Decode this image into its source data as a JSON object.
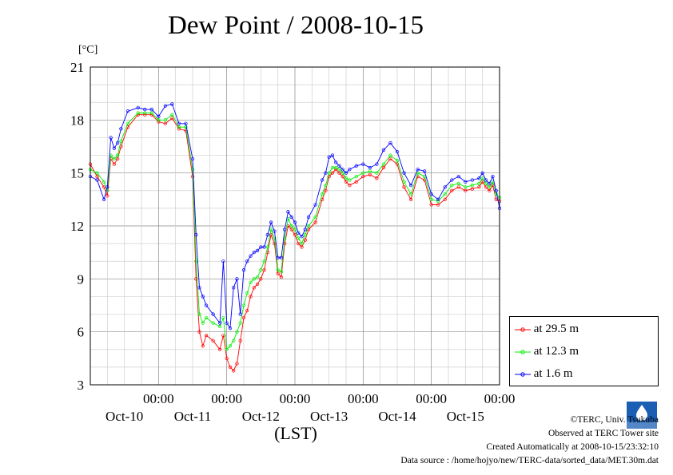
{
  "title": "Dew Point / 2008-10-15",
  "unit": "[°C]",
  "xlabel": "(LST)",
  "footer": {
    "copyright": "©TERC, Univ. Tsukuba",
    "observed": "Observed at TERC Tower site",
    "created": "Created Automatically at 2008-10-15/23:32:10",
    "source": "Data source : /home/hojyo/new/TERC-data/sorted_data/MET.30m.dat"
  },
  "logo_text": "TERC",
  "colors": {
    "series_29_5": "#ff0000",
    "series_12_3": "#00ee00",
    "series_1_6": "#0000ff",
    "grid": "#999999"
  },
  "chart_data": {
    "type": "line",
    "x_unit": "days from 2008-10-09 12:00 LST",
    "xlim": [
      0,
      6
    ],
    "ylim": [
      3,
      21
    ],
    "yticks": [
      3,
      6,
      9,
      12,
      15,
      18,
      21
    ],
    "xtick_labels": [
      {
        "x": 1,
        "time": "00:00",
        "date": "Oct-10"
      },
      {
        "x": 2,
        "time": "00:00",
        "date": "Oct-11"
      },
      {
        "x": 3,
        "time": "00:00",
        "date": "Oct-12"
      },
      {
        "x": 4,
        "time": "00:00",
        "date": "Oct-13"
      },
      {
        "x": 5,
        "time": "00:00",
        "date": "Oct-14"
      },
      {
        "x": 6,
        "time": "00:00",
        "date": "Oct-15"
      }
    ],
    "grid": true,
    "legend_position": "right",
    "series": [
      {
        "name": "at 29.5 m",
        "color": "#ff0000",
        "x": [
          0,
          0.1,
          0.2,
          0.25,
          0.3,
          0.35,
          0.4,
          0.45,
          0.55,
          0.7,
          0.8,
          0.9,
          1.0,
          1.1,
          1.2,
          1.3,
          1.4,
          1.5,
          1.55,
          1.6,
          1.65,
          1.7,
          1.8,
          1.9,
          1.95,
          2.0,
          2.05,
          2.1,
          2.15,
          2.2,
          2.25,
          2.3,
          2.35,
          2.4,
          2.45,
          2.5,
          2.55,
          2.6,
          2.65,
          2.7,
          2.75,
          2.8,
          2.85,
          2.9,
          2.95,
          3.0,
          3.05,
          3.1,
          3.15,
          3.2,
          3.3,
          3.4,
          3.45,
          3.5,
          3.55,
          3.6,
          3.65,
          3.7,
          3.75,
          3.8,
          3.9,
          4.0,
          4.1,
          4.2,
          4.3,
          4.4,
          4.5,
          4.6,
          4.7,
          4.8,
          4.9,
          5.0,
          5.1,
          5.2,
          5.3,
          5.4,
          5.5,
          5.6,
          5.7,
          5.75,
          5.8,
          5.85,
          5.9,
          5.95,
          6.0
        ],
        "y": [
          15.5,
          14.8,
          14.2,
          13.7,
          15.8,
          15.5,
          15.8,
          16.5,
          17.6,
          18.3,
          18.3,
          18.3,
          17.9,
          17.8,
          18.1,
          17.5,
          17.4,
          14.8,
          9.0,
          6.0,
          5.2,
          5.8,
          5.5,
          5.0,
          5.8,
          4.5,
          4.0,
          3.8,
          4.2,
          5.5,
          6.8,
          7.2,
          8.0,
          8.5,
          8.7,
          9.0,
          9.5,
          10.5,
          11.5,
          11.0,
          9.3,
          9.1,
          11.0,
          12.0,
          11.8,
          11.5,
          11.0,
          10.8,
          11.2,
          11.8,
          12.2,
          13.5,
          14.0,
          14.8,
          15.0,
          15.2,
          15.0,
          14.8,
          14.5,
          14.3,
          14.5,
          14.8,
          14.9,
          14.7,
          15.3,
          15.8,
          15.5,
          14.2,
          13.5,
          14.8,
          14.6,
          13.2,
          13.2,
          13.5,
          14.0,
          14.2,
          14.0,
          14.1,
          14.2,
          14.5,
          14.2,
          14.0,
          14.3,
          13.5,
          13.4
        ]
      },
      {
        "name": "at 12.3 m",
        "color": "#00ee00",
        "x": [
          0,
          0.1,
          0.2,
          0.25,
          0.3,
          0.35,
          0.4,
          0.45,
          0.55,
          0.7,
          0.8,
          0.9,
          1.0,
          1.1,
          1.2,
          1.3,
          1.4,
          1.5,
          1.55,
          1.6,
          1.65,
          1.7,
          1.8,
          1.9,
          1.95,
          2.0,
          2.05,
          2.1,
          2.15,
          2.2,
          2.25,
          2.3,
          2.35,
          2.4,
          2.45,
          2.5,
          2.55,
          2.6,
          2.65,
          2.7,
          2.75,
          2.8,
          2.85,
          2.9,
          2.95,
          3.0,
          3.05,
          3.1,
          3.15,
          3.2,
          3.3,
          3.4,
          3.45,
          3.5,
          3.55,
          3.6,
          3.65,
          3.7,
          3.75,
          3.8,
          3.9,
          4.0,
          4.1,
          4.2,
          4.3,
          4.4,
          4.5,
          4.6,
          4.7,
          4.8,
          4.9,
          5.0,
          5.1,
          5.2,
          5.3,
          5.4,
          5.5,
          5.6,
          5.7,
          5.75,
          5.8,
          5.85,
          5.9,
          5.95,
          6.0
        ],
        "y": [
          15.2,
          15.0,
          14.5,
          14.0,
          16.0,
          15.8,
          16.0,
          16.8,
          17.8,
          18.4,
          18.4,
          18.4,
          18.0,
          18.0,
          18.3,
          17.6,
          17.6,
          15.2,
          10.0,
          7.0,
          6.5,
          6.8,
          6.5,
          6.3,
          6.8,
          5.0,
          5.2,
          5.5,
          6.0,
          6.5,
          7.5,
          8.2,
          8.8,
          9.0,
          9.1,
          9.5,
          10.0,
          10.8,
          11.8,
          11.3,
          9.5,
          9.4,
          11.3,
          12.4,
          12.0,
          11.8,
          11.3,
          11.0,
          11.5,
          12.0,
          12.5,
          13.8,
          14.3,
          15.0,
          15.3,
          15.3,
          15.2,
          15.0,
          14.7,
          14.6,
          14.8,
          15.0,
          15.1,
          15.0,
          15.5,
          16.0,
          15.7,
          14.5,
          13.8,
          15.0,
          14.8,
          13.5,
          13.4,
          13.8,
          14.3,
          14.4,
          14.2,
          14.3,
          14.4,
          14.7,
          14.4,
          14.2,
          14.5,
          13.8,
          13.6
        ]
      },
      {
        "name": "at 1.6 m",
        "color": "#0000ff",
        "x": [
          0,
          0.1,
          0.2,
          0.25,
          0.3,
          0.35,
          0.4,
          0.45,
          0.55,
          0.7,
          0.8,
          0.9,
          1.0,
          1.1,
          1.2,
          1.3,
          1.4,
          1.5,
          1.55,
          1.6,
          1.65,
          1.7,
          1.8,
          1.9,
          1.95,
          2.0,
          2.05,
          2.1,
          2.15,
          2.2,
          2.25,
          2.3,
          2.35,
          2.4,
          2.45,
          2.5,
          2.55,
          2.6,
          2.65,
          2.7,
          2.75,
          2.8,
          2.85,
          2.9,
          2.95,
          3.0,
          3.05,
          3.1,
          3.15,
          3.2,
          3.3,
          3.4,
          3.45,
          3.5,
          3.55,
          3.6,
          3.65,
          3.7,
          3.75,
          3.8,
          3.9,
          4.0,
          4.1,
          4.2,
          4.3,
          4.4,
          4.5,
          4.6,
          4.7,
          4.8,
          4.9,
          5.0,
          5.1,
          5.2,
          5.3,
          5.4,
          5.5,
          5.6,
          5.7,
          5.75,
          5.8,
          5.85,
          5.9,
          5.95,
          6.0
        ],
        "y": [
          14.8,
          14.6,
          13.5,
          14.2,
          17.0,
          16.4,
          16.7,
          17.5,
          18.5,
          18.7,
          18.6,
          18.6,
          18.2,
          18.8,
          18.9,
          17.8,
          17.8,
          15.8,
          11.5,
          8.5,
          8.0,
          7.5,
          7.0,
          6.5,
          10.0,
          6.5,
          6.2,
          8.5,
          9.0,
          7.0,
          9.5,
          10.0,
          10.3,
          10.5,
          10.6,
          10.8,
          10.8,
          11.5,
          12.2,
          11.7,
          10.2,
          10.2,
          11.8,
          12.8,
          12.5,
          12.2,
          11.6,
          11.4,
          11.8,
          12.5,
          13.2,
          14.6,
          15.0,
          15.9,
          16.0,
          15.6,
          15.4,
          15.2,
          15.0,
          15.2,
          15.4,
          15.5,
          15.3,
          15.5,
          16.3,
          16.7,
          16.2,
          15.0,
          14.3,
          15.2,
          15.1,
          13.8,
          13.5,
          14.2,
          14.6,
          14.8,
          14.5,
          14.6,
          14.7,
          15.0,
          14.6,
          14.4,
          14.8,
          14.0,
          13.0
        ]
      }
    ]
  }
}
